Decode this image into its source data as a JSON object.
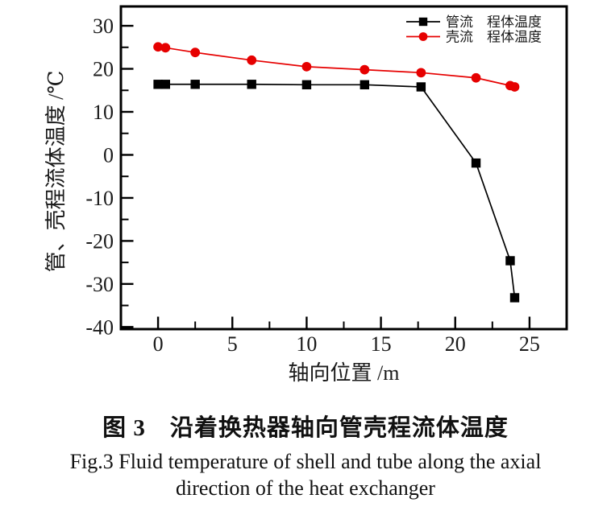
{
  "figure": {
    "caption_cn": "图 3　沿着换热器轴向管壳程流体温度",
    "caption_en_line1": "Fig.3  Fluid temperature of shell and tube along the axial",
    "caption_en_line2": "direction of the heat exchanger"
  },
  "chart_data": {
    "type": "line",
    "title": "",
    "xlabel": "轴向位置 /m",
    "ylabel": "管、壳程流体温度 /℃",
    "xlim": [
      -2.5,
      27.5
    ],
    "ylim": [
      -40.5,
      34.5
    ],
    "x_major_ticks": [
      0,
      5,
      10,
      15,
      20,
      25
    ],
    "x_minor_ticks": [
      2.5,
      7.5,
      12.5,
      17.5,
      22.5
    ],
    "y_major_ticks": [
      -40,
      -30,
      -20,
      -10,
      0,
      10,
      20,
      30
    ],
    "y_minor_ticks": [
      -35,
      -25,
      -15,
      -5,
      5,
      15,
      25
    ],
    "grid": false,
    "legend_position": "top-right-inside",
    "x": [
      0,
      0.5,
      2.5,
      6.3,
      10,
      13.9,
      17.7,
      21.4,
      23.7,
      24
    ],
    "series": [
      {
        "id": "tube-flow",
        "name": "管流　程体温度",
        "marker": "square",
        "color": "#000000",
        "values": [
          16.4,
          16.4,
          16.4,
          16.4,
          16.3,
          16.3,
          15.8,
          -1.9,
          -24.6,
          -33.2
        ]
      },
      {
        "id": "shell-flow",
        "name": "壳流　程体温度",
        "marker": "circle",
        "color": "#e60000",
        "values": [
          25.1,
          24.9,
          23.8,
          22.0,
          20.5,
          19.8,
          19.1,
          17.9,
          16.1,
          15.8
        ]
      }
    ],
    "colors": {
      "axis": "#000000",
      "text": "#1a1a1a",
      "accent_red": "#e60000"
    }
  }
}
